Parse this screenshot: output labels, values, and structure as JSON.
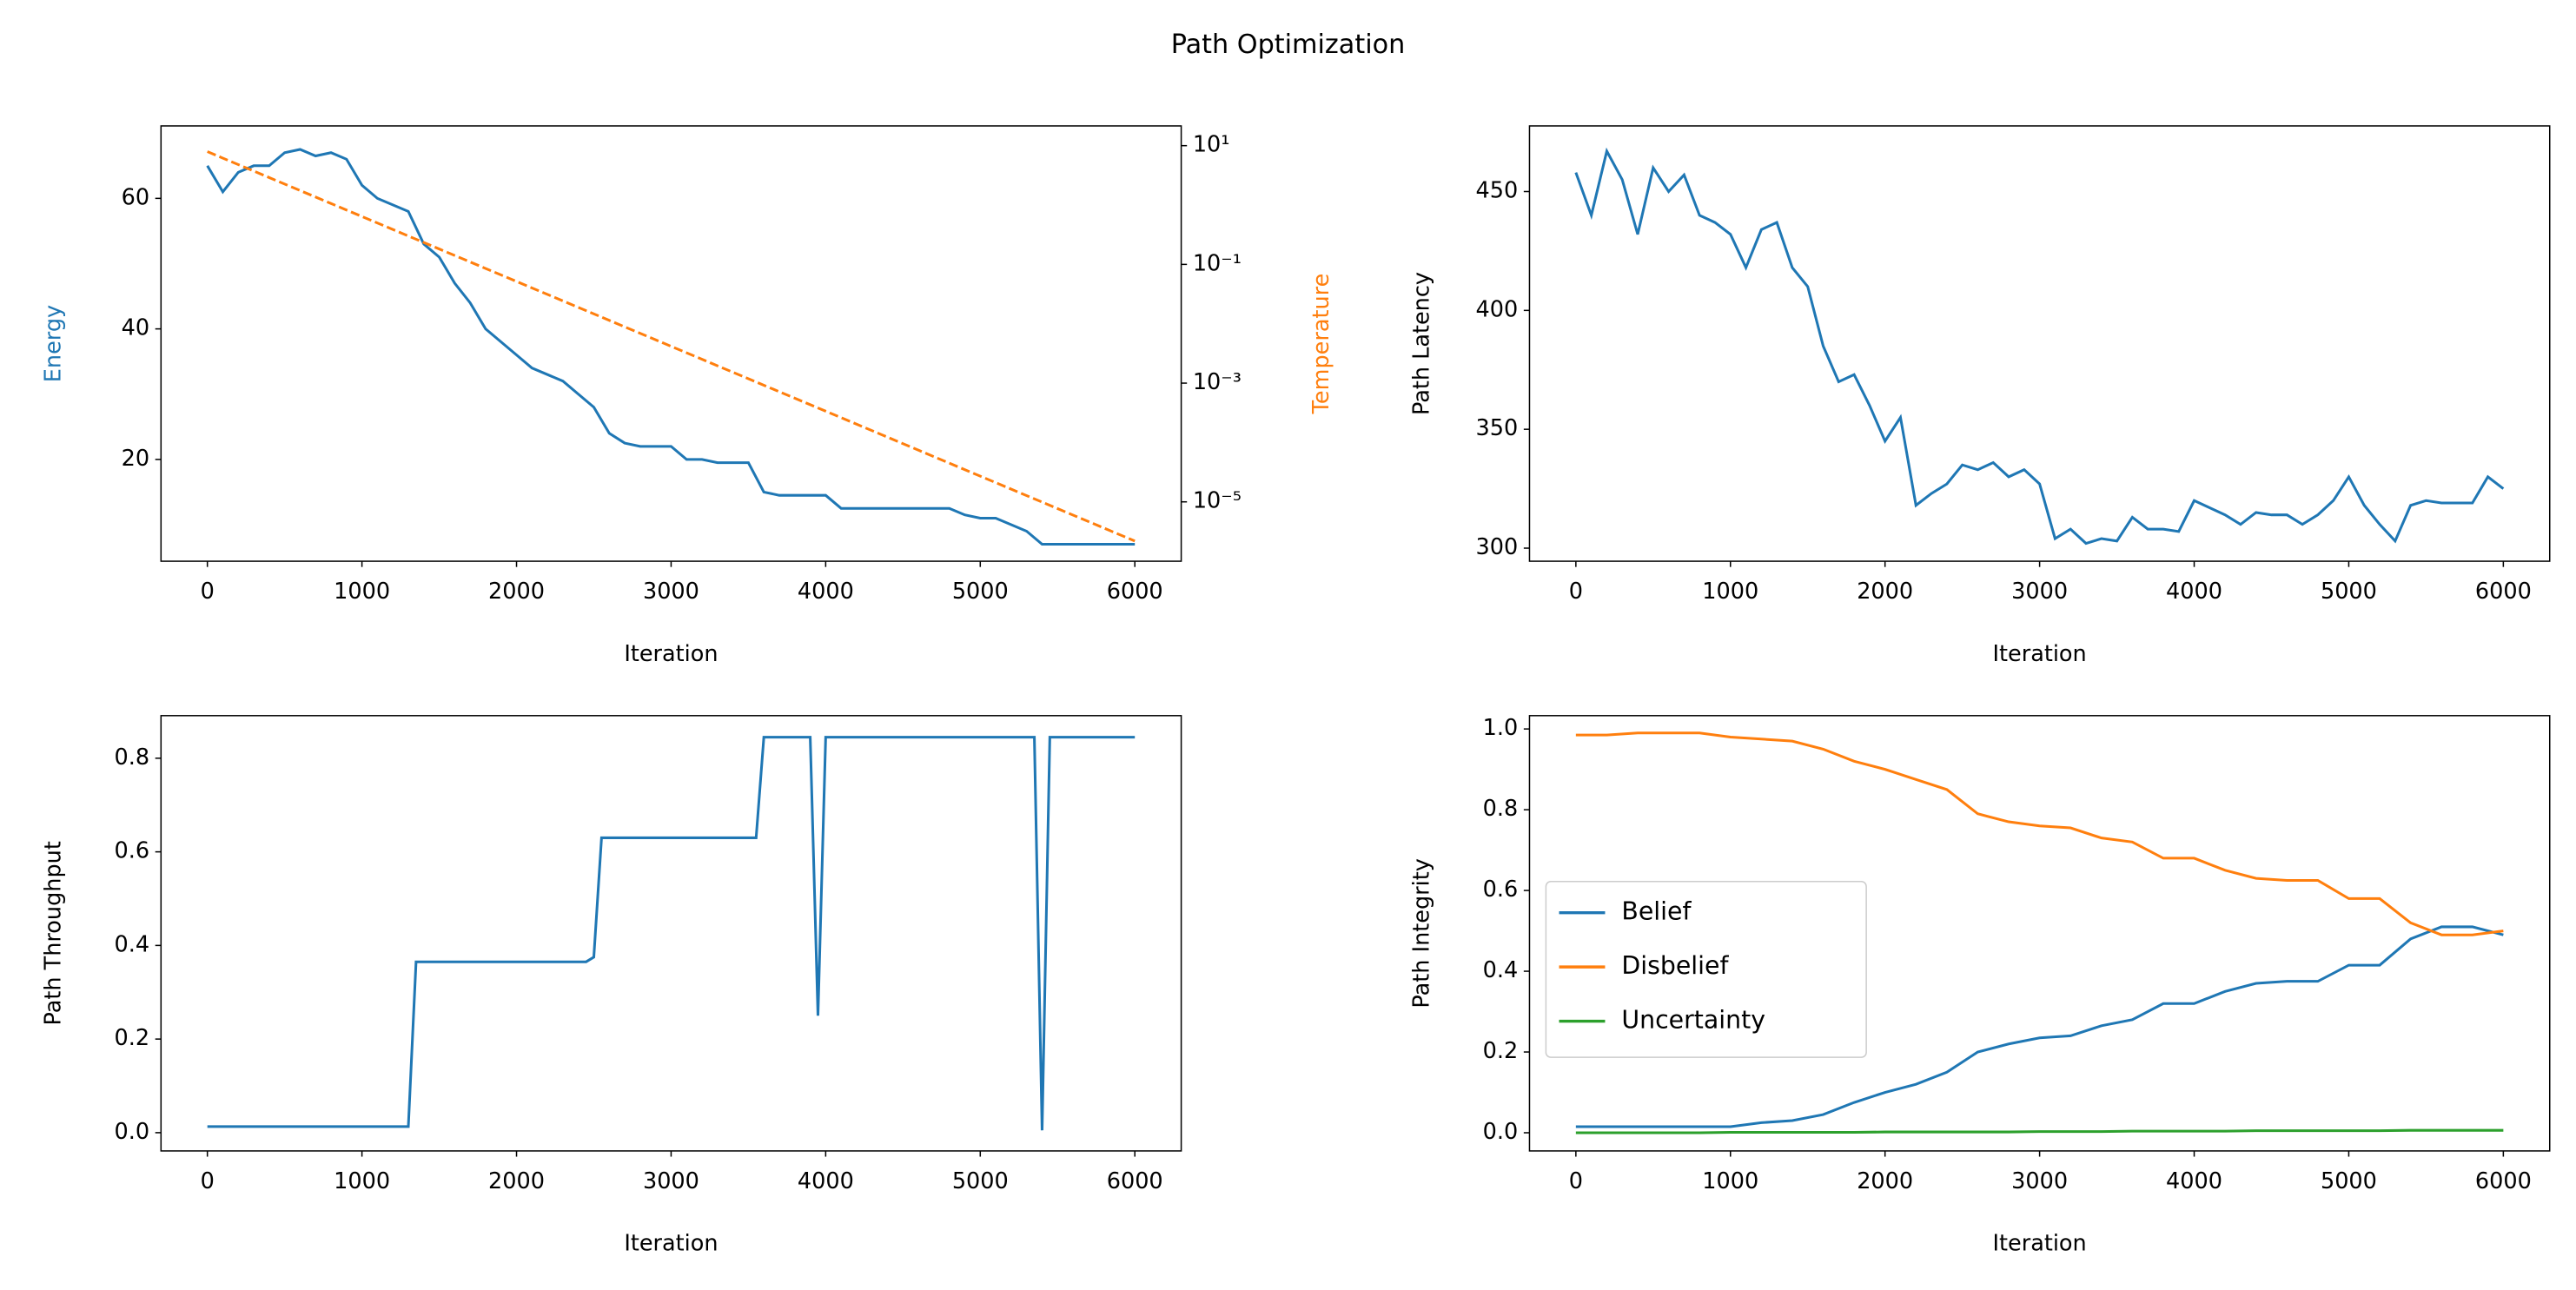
{
  "title": "Path Optimization",
  "chart_data": [
    {
      "type": "line",
      "xlabel": "Iteration",
      "ylabel": "Energy",
      "y2label": "Temperature",
      "x": [
        0,
        100,
        200,
        300,
        400,
        500,
        600,
        700,
        800,
        900,
        1000,
        1100,
        1200,
        1300,
        1400,
        1500,
        1600,
        1700,
        1800,
        1900,
        2000,
        2100,
        2200,
        2300,
        2400,
        2500,
        2600,
        2700,
        2800,
        2900,
        3000,
        3100,
        3200,
        3300,
        3400,
        3500,
        3600,
        3700,
        3800,
        3900,
        4000,
        4100,
        4200,
        4300,
        4400,
        4500,
        4600,
        4700,
        4800,
        4900,
        5000,
        5100,
        5200,
        5300,
        5400,
        5500,
        5600,
        5700,
        5800,
        5900,
        6000
      ],
      "xlim": [
        -300,
        6300
      ],
      "xticks": [
        0,
        1000,
        2000,
        3000,
        4000,
        5000,
        6000
      ],
      "ylim": [
        4.4,
        71.1
      ],
      "yticks": [
        20,
        40,
        60
      ],
      "y2log": true,
      "y2lim": [
        1e-06,
        21.5
      ],
      "y2ticks": [
        {
          "value": 10,
          "label": "10¹"
        },
        {
          "value": 0.1,
          "label": "10⁻¹"
        },
        {
          "value": 0.001,
          "label": "10⁻³"
        },
        {
          "value": 1e-05,
          "label": "10⁻⁵"
        }
      ],
      "series": [
        {
          "color": "#1f77b4",
          "values": [
            65,
            61,
            64,
            65,
            65,
            67,
            67.5,
            66.5,
            67,
            66,
            62,
            60,
            59,
            58,
            53,
            51,
            47,
            44,
            40,
            38,
            36,
            34,
            33,
            32,
            30,
            28,
            24,
            22.5,
            22,
            22,
            22,
            20,
            20,
            19.5,
            19.5,
            19.5,
            15,
            14.5,
            14.5,
            14.5,
            14.5,
            12.5,
            12.5,
            12.5,
            12.5,
            12.5,
            12.5,
            12.5,
            12.5,
            11.5,
            11,
            11,
            10,
            9,
            7,
            7,
            7,
            7,
            7,
            7,
            7
          ]
        },
        {
          "color": "#ff7f0e",
          "axis": "y2",
          "linestyle": "dashed",
          "x": [
            0,
            1000,
            2000,
            3000,
            4000,
            5000,
            6000
          ],
          "values": [
            7.94,
            0.641,
            0.0516,
            0.00417,
            0.000337,
            2.71e-05,
            2.19e-06
          ]
        }
      ]
    },
    {
      "type": "line",
      "xlabel": "Iteration",
      "ylabel": "Path Latency",
      "x": [
        0,
        100,
        200,
        300,
        400,
        500,
        600,
        700,
        800,
        900,
        1000,
        1100,
        1200,
        1300,
        1400,
        1500,
        1600,
        1700,
        1800,
        1900,
        2000,
        2100,
        2200,
        2300,
        2400,
        2500,
        2600,
        2700,
        2800,
        2900,
        3000,
        3100,
        3200,
        3300,
        3400,
        3500,
        3600,
        3700,
        3800,
        3900,
        4000,
        4100,
        4200,
        4300,
        4400,
        4500,
        4600,
        4700,
        4800,
        4900,
        5000,
        5100,
        5200,
        5300,
        5400,
        5500,
        5600,
        5700,
        5800,
        5900,
        6000
      ],
      "xlim": [
        -300,
        6300
      ],
      "xticks": [
        0,
        1000,
        2000,
        3000,
        4000,
        5000,
        6000
      ],
      "ylim": [
        294.5,
        477.6
      ],
      "yticks": [
        300,
        350,
        400,
        450
      ],
      "series": [
        {
          "color": "#1f77b4",
          "values": [
            458,
            440,
            467,
            455,
            432,
            460,
            450,
            457,
            440,
            437,
            432,
            418,
            434,
            437,
            418,
            410,
            385,
            370,
            373,
            360,
            345,
            355,
            318,
            323,
            327,
            335,
            333,
            336,
            330,
            333,
            327,
            304,
            308,
            302,
            304,
            303,
            313,
            308,
            308,
            307,
            320,
            317,
            314,
            310,
            315,
            314,
            314,
            310,
            314,
            320,
            330,
            318,
            310,
            303,
            318,
            320,
            319,
            319,
            319,
            330,
            325
          ]
        }
      ]
    },
    {
      "type": "line",
      "xlabel": "Iteration",
      "ylabel": "Path Throughput",
      "x": [
        0,
        1300,
        1350,
        2450,
        2500,
        2550,
        3550,
        3600,
        3900,
        3950,
        4000,
        5350,
        5400,
        5450,
        6000
      ],
      "xlim": [
        -300,
        6300
      ],
      "xticks": [
        0,
        1000,
        2000,
        3000,
        4000,
        5000,
        6000
      ],
      "ylim": [
        -0.039,
        0.891
      ],
      "yticks": [
        {
          "value": 0,
          "label": "0.0"
        },
        {
          "value": 0.2,
          "label": "0.2"
        },
        {
          "value": 0.4,
          "label": "0.4"
        },
        {
          "value": 0.6,
          "label": "0.6"
        },
        {
          "value": 0.8,
          "label": "0.8"
        }
      ],
      "series": [
        {
          "color": "#1f77b4",
          "values": [
            0.013,
            0.013,
            0.365,
            0.365,
            0.375,
            0.63,
            0.63,
            0.845,
            0.845,
            0.25,
            0.845,
            0.845,
            0.005,
            0.845,
            0.845
          ]
        }
      ]
    },
    {
      "type": "line",
      "xlabel": "Iteration",
      "ylabel": "Path Integrity",
      "legend": "center left",
      "x": [
        0,
        200,
        400,
        600,
        800,
        1000,
        1200,
        1400,
        1600,
        1800,
        2000,
        2200,
        2400,
        2600,
        2800,
        3000,
        3200,
        3400,
        3600,
        3800,
        4000,
        4200,
        4400,
        4600,
        4800,
        5000,
        5200,
        5400,
        5600,
        5800,
        6000
      ],
      "xlim": [
        -300,
        6300
      ],
      "xticks": [
        0,
        1000,
        2000,
        3000,
        4000,
        5000,
        6000
      ],
      "ylim": [
        -0.045,
        1.033
      ],
      "yticks": [
        {
          "value": 0,
          "label": "0.0"
        },
        {
          "value": 0.2,
          "label": "0.2"
        },
        {
          "value": 0.4,
          "label": "0.4"
        },
        {
          "value": 0.6,
          "label": "0.6"
        },
        {
          "value": 0.8,
          "label": "0.8"
        },
        {
          "value": 1,
          "label": "1.0"
        }
      ],
      "series": [
        {
          "name": "Belief",
          "color": "#1f77b4",
          "values": [
            0.015,
            0.015,
            0.015,
            0.015,
            0.015,
            0.015,
            0.025,
            0.03,
            0.045,
            0.075,
            0.1,
            0.12,
            0.15,
            0.2,
            0.22,
            0.235,
            0.24,
            0.265,
            0.28,
            0.32,
            0.32,
            0.35,
            0.37,
            0.375,
            0.375,
            0.415,
            0.415,
            0.48,
            0.51,
            0.51,
            0.49
          ]
        },
        {
          "name": "Disbelief",
          "color": "#ff7f0e",
          "values": [
            0.985,
            0.985,
            0.99,
            0.99,
            0.99,
            0.98,
            0.975,
            0.97,
            0.95,
            0.92,
            0.9,
            0.875,
            0.85,
            0.79,
            0.77,
            0.76,
            0.755,
            0.73,
            0.72,
            0.68,
            0.68,
            0.65,
            0.63,
            0.625,
            0.625,
            0.58,
            0.58,
            0.52,
            0.49,
            0.49,
            0.5
          ]
        },
        {
          "name": "Uncertainty",
          "color": "#2ca02c",
          "values": [
            0,
            0,
            0,
            0,
            0,
            0.001,
            0.001,
            0.001,
            0.001,
            0.001,
            0.002,
            0.002,
            0.002,
            0.002,
            0.002,
            0.003,
            0.003,
            0.003,
            0.004,
            0.004,
            0.004,
            0.004,
            0.005,
            0.005,
            0.005,
            0.005,
            0.005,
            0.006,
            0.006,
            0.006,
            0.006
          ]
        }
      ]
    }
  ]
}
